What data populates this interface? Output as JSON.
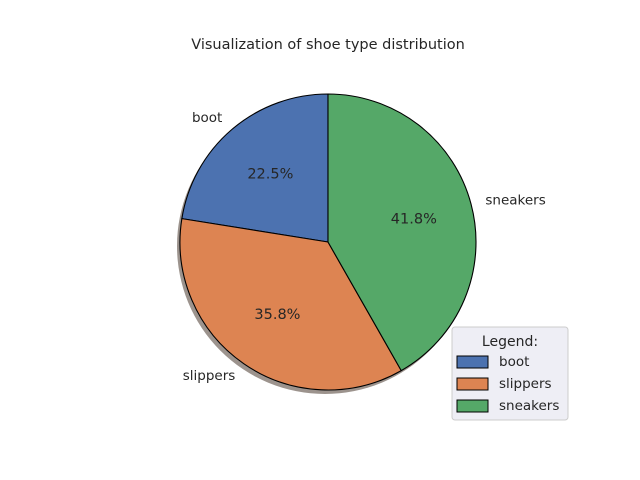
{
  "chart_data": {
    "type": "pie",
    "title": "Visualization of shoe type distribution",
    "categories": [
      "boot",
      "slippers",
      "sneakers"
    ],
    "values": [
      22.5,
      35.8,
      41.8
    ],
    "value_labels": [
      "22.5%",
      "35.8%",
      "41.8%"
    ],
    "colors": [
      "#4c72b0",
      "#dd8452",
      "#55a868"
    ],
    "start_angle_deg": 90,
    "direction": "counterclockwise",
    "shadow": true,
    "legend": {
      "title": "Legend:",
      "placement": "lower-right",
      "entries": [
        "boot",
        "slippers",
        "sneakers"
      ]
    }
  }
}
